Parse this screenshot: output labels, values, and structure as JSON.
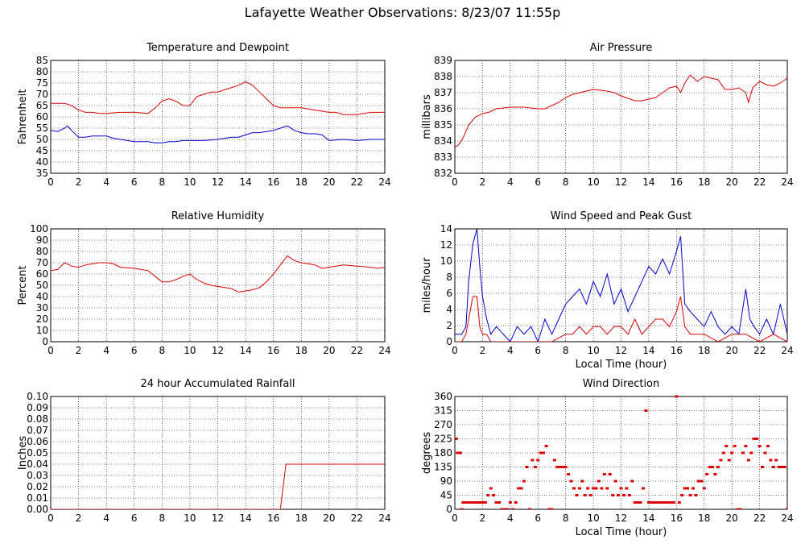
{
  "page": {
    "title": "Lafayette Weather Observations: 8/23/07 11:55p"
  },
  "colors": {
    "red": "#dd0000",
    "blue": "#0000cc",
    "grid": "#000000",
    "frame": "#000000"
  },
  "chart_data": [
    {
      "id": "temperature",
      "type": "line",
      "title": "Temperature and Dewpoint",
      "xlabel": "",
      "ylabel": "Fahrenheit",
      "xlim": [
        0,
        24
      ],
      "ylim": [
        35,
        85
      ],
      "xticks": [
        "0",
        "2",
        "4",
        "6",
        "8",
        "10",
        "12",
        "14",
        "16",
        "18",
        "20",
        "22",
        "24"
      ],
      "yticks": [
        "35",
        "40",
        "45",
        "50",
        "55",
        "60",
        "65",
        "70",
        "75",
        "80",
        "85"
      ],
      "grid": true,
      "series": [
        {
          "color": "#dd0000",
          "x": [
            0,
            0.5,
            1,
            1.5,
            2,
            2.5,
            3,
            3.5,
            4,
            5,
            6,
            7,
            7.5,
            8,
            8.5,
            9,
            9.5,
            10,
            10.5,
            11,
            11.5,
            12,
            12.5,
            13,
            13.5,
            14,
            14.5,
            15,
            15.5,
            16,
            16.5,
            17,
            17.5,
            18,
            18.5,
            19,
            19.5,
            20,
            20.5,
            21,
            21.5,
            22,
            22.5,
            23,
            23.5,
            24
          ],
          "y": [
            66,
            66,
            66,
            65,
            63,
            62,
            62,
            61.5,
            61.5,
            62,
            62,
            61.5,
            64,
            67,
            68,
            67,
            65,
            65,
            69,
            70,
            71,
            71,
            72,
            73,
            74,
            75.5,
            74,
            71,
            68,
            65,
            64,
            64,
            64,
            64,
            63.5,
            63,
            62.5,
            62,
            62,
            61,
            61,
            61,
            61.5,
            62,
            62,
            62
          ]
        },
        {
          "color": "#0000cc",
          "x": [
            0,
            0.5,
            1,
            1.2,
            1.5,
            2,
            2.5,
            3,
            3.5,
            4,
            4.5,
            5,
            5.5,
            6,
            6.5,
            7,
            7.5,
            8,
            8.5,
            9,
            9.5,
            10,
            11,
            12,
            12.5,
            13,
            13.5,
            14,
            14.5,
            15,
            15.5,
            16,
            16.5,
            17,
            17.5,
            18,
            18.5,
            19,
            19.5,
            20,
            21,
            22,
            23,
            24
          ],
          "y": [
            54,
            53.5,
            55,
            56,
            54,
            51,
            51,
            51.5,
            51.5,
            51.5,
            50.5,
            50,
            49.5,
            49,
            49,
            49,
            48.5,
            48.5,
            49,
            49,
            49.5,
            49.5,
            49.5,
            50,
            50.5,
            51,
            51,
            52,
            53,
            53,
            53.5,
            54,
            55,
            56,
            54,
            53,
            52.5,
            52.5,
            52,
            49.5,
            50,
            49.5,
            50,
            50
          ]
        }
      ]
    },
    {
      "id": "pressure",
      "type": "line",
      "title": "Air Pressure",
      "xlabel": "",
      "ylabel": "millibars",
      "xlim": [
        0,
        24
      ],
      "ylim": [
        832,
        839
      ],
      "xticks": [
        "0",
        "2",
        "4",
        "6",
        "8",
        "10",
        "12",
        "14",
        "16",
        "18",
        "20",
        "22",
        "24"
      ],
      "yticks": [
        "832",
        "833",
        "834",
        "835",
        "836",
        "837",
        "838",
        "839"
      ],
      "grid": true,
      "series": [
        {
          "color": "#dd0000",
          "x": [
            0,
            0.3,
            0.6,
            1,
            1.5,
            2,
            2.5,
            3,
            4,
            5,
            6,
            6.5,
            7,
            7.5,
            8,
            8.5,
            9,
            9.5,
            10,
            11,
            11.5,
            12,
            13,
            13.5,
            14,
            14.5,
            15,
            15.5,
            16,
            16.3,
            16.6,
            17,
            17.5,
            18,
            18.5,
            19,
            19.5,
            20,
            20.5,
            21,
            21.2,
            21.5,
            22,
            22.5,
            23,
            23.5,
            24
          ],
          "y": [
            833.6,
            833.8,
            834.2,
            835,
            835.5,
            835.7,
            835.8,
            836,
            836.1,
            836.1,
            836,
            836,
            836.2,
            836.4,
            836.7,
            836.9,
            837,
            837.1,
            837.2,
            837.1,
            837,
            836.8,
            836.5,
            836.5,
            836.6,
            836.7,
            837,
            837.3,
            837.4,
            837,
            837.6,
            838.1,
            837.7,
            838,
            837.9,
            837.8,
            837.2,
            837.2,
            837.3,
            837,
            836.4,
            837.3,
            837.7,
            837.5,
            837.4,
            837.6,
            837.9
          ]
        }
      ]
    },
    {
      "id": "humidity",
      "type": "line",
      "title": "Relative Humidity",
      "xlabel": "",
      "ylabel": "Percent",
      "xlim": [
        0,
        24
      ],
      "ylim": [
        0,
        100
      ],
      "xticks": [
        "0",
        "2",
        "4",
        "6",
        "8",
        "10",
        "12",
        "14",
        "16",
        "18",
        "20",
        "22",
        "24"
      ],
      "yticks": [
        "0",
        "10",
        "20",
        "30",
        "40",
        "50",
        "60",
        "70",
        "80",
        "90",
        "100"
      ],
      "grid": true,
      "series": [
        {
          "color": "#dd0000",
          "x": [
            0,
            0.5,
            1,
            1.5,
            2,
            2.5,
            3,
            3.5,
            4,
            4.5,
            5,
            6,
            6.5,
            7,
            7.5,
            8,
            8.5,
            9,
            9.5,
            10,
            10.5,
            11,
            11.5,
            12,
            12.5,
            13,
            13.5,
            14,
            14.5,
            15,
            15.5,
            16,
            16.5,
            17,
            17.5,
            18,
            18.5,
            19,
            19.5,
            20,
            20.5,
            21,
            22,
            23,
            23.5,
            24
          ],
          "y": [
            63,
            64,
            70,
            67,
            66,
            68,
            69,
            70,
            70,
            69,
            66,
            65,
            64,
            63,
            58,
            53,
            53,
            55,
            58,
            60,
            55,
            52,
            50,
            49,
            48,
            47,
            44,
            45,
            46,
            48,
            53,
            60,
            68,
            76,
            72,
            70,
            69,
            68,
            65,
            66,
            67,
            68,
            67,
            66,
            65,
            66
          ]
        }
      ]
    },
    {
      "id": "wind",
      "type": "line",
      "title": "Wind Speed and Peak Gust",
      "xlabel": "Local Time (hour)",
      "ylabel": "miles/hour",
      "xlim": [
        0,
        24
      ],
      "ylim": [
        0,
        15
      ],
      "xticks": [
        "0",
        "2",
        "4",
        "6",
        "8",
        "10",
        "12",
        "14",
        "16",
        "18",
        "20",
        "22",
        "24"
      ],
      "yticks": [
        "0",
        "2",
        "4",
        "6",
        "8",
        "10",
        "12",
        "14"
      ],
      "grid": true,
      "series": [
        {
          "color": "#0000cc",
          "x": [
            0,
            0.5,
            0.8,
            1,
            1.3,
            1.6,
            1.8,
            2,
            2.3,
            2.6,
            3,
            3.5,
            4,
            4.5,
            5,
            5.5,
            6,
            6.5,
            7,
            7.5,
            8,
            8.5,
            9,
            9.5,
            10,
            10.5,
            11,
            11.5,
            12,
            12.5,
            13,
            13.5,
            14,
            14.5,
            15,
            15.5,
            16,
            16.3,
            16.6,
            17,
            17.5,
            18,
            18.5,
            19,
            19.5,
            20,
            20.5,
            21,
            21.3,
            21.6,
            22,
            22.5,
            23,
            23.5,
            24
          ],
          "y": [
            1,
            1,
            2,
            8,
            13,
            15,
            10,
            6,
            3,
            1,
            2,
            1,
            0,
            2,
            1,
            2,
            0,
            3,
            1,
            3,
            5,
            6,
            7,
            5,
            8,
            6,
            9,
            5,
            7,
            4,
            6,
            8,
            10,
            9,
            11,
            9,
            12,
            14,
            5,
            4,
            3,
            2,
            4,
            2,
            1,
            2,
            1,
            7,
            3,
            2,
            1,
            3,
            1,
            5,
            1
          ]
        },
        {
          "color": "#dd0000",
          "x": [
            0,
            0.5,
            0.8,
            1,
            1.3,
            1.6,
            1.8,
            2,
            2.3,
            2.6,
            3,
            4,
            5,
            6,
            7,
            8,
            8.5,
            9,
            9.5,
            10,
            10.5,
            11,
            11.5,
            12,
            12.5,
            13,
            13.5,
            14,
            14.5,
            15,
            15.5,
            16,
            16.3,
            16.6,
            17,
            18,
            19,
            20,
            21,
            22,
            23,
            24
          ],
          "y": [
            0,
            0,
            1,
            3,
            6,
            6,
            2,
            1,
            1,
            0,
            0,
            0,
            0,
            0,
            0,
            1,
            1,
            2,
            1,
            2,
            2,
            1,
            2,
            2,
            1,
            3,
            1,
            2,
            3,
            3,
            2,
            4,
            6,
            2,
            1,
            1,
            0,
            1,
            1,
            0,
            1,
            0
          ]
        }
      ]
    },
    {
      "id": "rainfall",
      "type": "line",
      "title": "24 hour Accumulated Rainfall",
      "xlabel": "",
      "ylabel": "Inches",
      "xlim": [
        0,
        24
      ],
      "ylim": [
        0,
        0.1
      ],
      "xticks": [
        "0",
        "2",
        "4",
        "6",
        "8",
        "10",
        "12",
        "14",
        "16",
        "18",
        "20",
        "22",
        "24"
      ],
      "yticks": [
        "0.00",
        "0.01",
        "0.02",
        "0.03",
        "0.04",
        "0.05",
        "0.06",
        "0.07",
        "0.08",
        "0.09",
        "0.10"
      ],
      "grid": true,
      "series": [
        {
          "color": "#dd0000",
          "x": [
            0,
            16.5,
            16.9,
            24
          ],
          "y": [
            0,
            0,
            0.04,
            0.04
          ]
        }
      ]
    },
    {
      "id": "direction",
      "type": "scatter",
      "title": "Wind Direction",
      "xlabel": "Local Time (hour)",
      "ylabel": "degrees",
      "xlim": [
        0,
        24
      ],
      "ylim": [
        0,
        360
      ],
      "xticks": [
        "0",
        "2",
        "4",
        "6",
        "8",
        "10",
        "12",
        "14",
        "16",
        "18",
        "20",
        "22",
        "24"
      ],
      "yticks": [
        "0",
        "45",
        "90",
        "135",
        "180",
        "225",
        "270",
        "315",
        "360"
      ],
      "grid": true,
      "series": [
        {
          "color": "#dd0000",
          "x": [
            0,
            0.1,
            0.2,
            0.3,
            0.4,
            0.5,
            0.6,
            0.8,
            1,
            1.2,
            1.4,
            1.6,
            1.8,
            2,
            2.2,
            2.4,
            2.6,
            2.8,
            3,
            3.2,
            3.4,
            3.6,
            3.8,
            4,
            4.2,
            4.4,
            4.6,
            4.8,
            5,
            5.2,
            5.4,
            5.6,
            5.8,
            6,
            6.2,
            6.4,
            6.6,
            6.8,
            7,
            7.2,
            7.4,
            7.6,
            7.8,
            8,
            8.2,
            8.4,
            8.6,
            8.8,
            9,
            9.2,
            9.4,
            9.6,
            9.8,
            10,
            10.2,
            10.4,
            10.6,
            10.8,
            11,
            11.2,
            11.4,
            11.6,
            11.8,
            12,
            12.2,
            12.4,
            12.6,
            12.8,
            13,
            13.2,
            13.4,
            13.6,
            13.8,
            14,
            14.2,
            14.4,
            14.6,
            14.8,
            15,
            15.2,
            15.4,
            15.6,
            15.8,
            16,
            16.2,
            16.4,
            16.6,
            16.8,
            17,
            17.2,
            17.4,
            17.6,
            17.8,
            18,
            18.2,
            18.4,
            18.6,
            18.8,
            19,
            19.2,
            19.4,
            19.6,
            19.8,
            20,
            20.2,
            20.4,
            20.6,
            20.8,
            21,
            21.2,
            21.4,
            21.6,
            21.8,
            22,
            22.2,
            22.4,
            22.6,
            22.8,
            23,
            23.2,
            23.4,
            23.6,
            23.8,
            24
          ],
          "y": [
            225,
            225,
            180,
            180,
            180,
            0,
            22,
            22,
            22,
            22,
            22,
            22,
            22,
            22,
            22,
            45,
            67,
            45,
            22,
            22,
            0,
            0,
            0,
            22,
            0,
            22,
            67,
            67,
            90,
            135,
            0,
            157,
            135,
            157,
            180,
            180,
            202,
            0,
            0,
            157,
            135,
            135,
            135,
            135,
            112,
            90,
            67,
            45,
            67,
            90,
            45,
            67,
            45,
            67,
            67,
            90,
            67,
            112,
            67,
            112,
            45,
            90,
            45,
            67,
            45,
            67,
            45,
            90,
            22,
            22,
            22,
            67,
            315,
            22,
            22,
            22,
            22,
            22,
            22,
            22,
            22,
            22,
            22,
            360,
            22,
            45,
            67,
            67,
            45,
            67,
            45,
            90,
            90,
            67,
            112,
            135,
            135,
            112,
            135,
            157,
            180,
            202,
            157,
            180,
            202,
            0,
            0,
            180,
            202,
            157,
            180,
            225,
            225,
            202,
            135,
            180,
            202,
            157,
            135,
            157,
            135,
            135,
            135,
            0
          ]
        }
      ]
    }
  ]
}
